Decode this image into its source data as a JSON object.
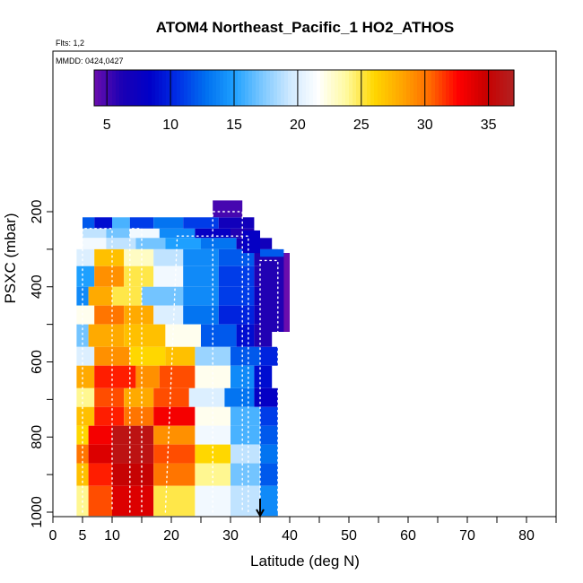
{
  "chart_data": {
    "type": "heatmap",
    "title": "ATOM4 Northeast_Pacific_1 HO2_ATHOS",
    "flights_label": "Flts: 1,2",
    "date_label": "MMDD: 0424,0427",
    "xlabel": "Latitude (deg N)",
    "ylabel": "PSXC (mbar)",
    "xlim": [
      0,
      85
    ],
    "ylim": [
      1010,
      100
    ],
    "y_reversed": true,
    "x_ticks": [
      0,
      5,
      10,
      20,
      30,
      40,
      50,
      60,
      70,
      80
    ],
    "x_minor_ticks": [
      15,
      25,
      35,
      45,
      55,
      65,
      75,
      85
    ],
    "y_ticks": [
      200,
      400,
      600,
      800,
      1000
    ],
    "y_minor_ticks": [
      300,
      500,
      700,
      900
    ],
    "colorbar": {
      "min": 4,
      "max": 37,
      "ticks": [
        5,
        10,
        15,
        20,
        25,
        30,
        35
      ],
      "palette": [
        "#6a0dad",
        "#1a00b4",
        "#0000c8",
        "#0030e6",
        "#0070f0",
        "#1ea0ff",
        "#7cc8ff",
        "#cfe9ff",
        "#ffffff",
        "#fffaa0",
        "#ffd700",
        "#ffa500",
        "#ff6a00",
        "#ff0000",
        "#c80000",
        "#b22222"
      ]
    },
    "marker": {
      "x": 35,
      "label": "arrow"
    },
    "layers": [
      {
        "p": [
          215,
          245
        ],
        "segments": [
          [
            5,
            7,
            12
          ],
          [
            7,
            10,
            9
          ],
          [
            10,
            13,
            16
          ],
          [
            13,
            17,
            11
          ],
          [
            17,
            22,
            13
          ],
          [
            22,
            28,
            11
          ],
          [
            28,
            34,
            7
          ]
        ]
      },
      {
        "p": [
          245,
          270
        ],
        "segments": [
          [
            5,
            9,
            19
          ],
          [
            9,
            13,
            17
          ],
          [
            13,
            18,
            21
          ],
          [
            18,
            24,
            14
          ],
          [
            24,
            30,
            8
          ],
          [
            30,
            34,
            6
          ]
        ]
      },
      {
        "p": [
          270,
          300
        ],
        "segments": [
          [
            5,
            9,
            21
          ],
          [
            9,
            14,
            19
          ],
          [
            14,
            19,
            17
          ],
          [
            19,
            25,
            15
          ],
          [
            25,
            31,
            13
          ],
          [
            31,
            37,
            7
          ]
        ]
      },
      {
        "p": [
          300,
          345
        ],
        "segments": [
          [
            4,
            7,
            20
          ],
          [
            7,
            12,
            27
          ],
          [
            12,
            17,
            23
          ],
          [
            17,
            22,
            19
          ],
          [
            22,
            28,
            14
          ],
          [
            28,
            34,
            12
          ],
          [
            34,
            38,
            6
          ]
        ]
      },
      {
        "p": [
          345,
          400
        ],
        "segments": [
          [
            4,
            7,
            15
          ],
          [
            7,
            12,
            29
          ],
          [
            12,
            17,
            25
          ],
          [
            17,
            22,
            21
          ],
          [
            22,
            28,
            14
          ],
          [
            28,
            34,
            11
          ],
          [
            34,
            38,
            6
          ]
        ]
      },
      {
        "p": [
          400,
          450
        ],
        "segments": [
          [
            4,
            6,
            14
          ],
          [
            6,
            10,
            28
          ],
          [
            10,
            15,
            25
          ],
          [
            15,
            22,
            17
          ],
          [
            22,
            28,
            14
          ],
          [
            28,
            34,
            11
          ],
          [
            34,
            38,
            7
          ]
        ]
      },
      {
        "p": [
          450,
          500
        ],
        "segments": [
          [
            4,
            7,
            22
          ],
          [
            7,
            12,
            30
          ],
          [
            12,
            17,
            28
          ],
          [
            17,
            22,
            20
          ],
          [
            22,
            28,
            13
          ],
          [
            28,
            34,
            10
          ],
          [
            34,
            37,
            7
          ]
        ]
      },
      {
        "p": [
          500,
          560
        ],
        "segments": [
          [
            4,
            6,
            17
          ],
          [
            6,
            12,
            28
          ],
          [
            12,
            19,
            27
          ],
          [
            19,
            25,
            22
          ],
          [
            25,
            31,
            12
          ],
          [
            31,
            34,
            9
          ],
          [
            34,
            37,
            6
          ]
        ]
      },
      {
        "p": [
          560,
          610
        ],
        "segments": [
          [
            4,
            7,
            20
          ],
          [
            7,
            13,
            29
          ],
          [
            13,
            19,
            26
          ],
          [
            19,
            24,
            27
          ],
          [
            24,
            30,
            18
          ],
          [
            30,
            35,
            12
          ],
          [
            35,
            38,
            10
          ]
        ]
      },
      {
        "p": [
          610,
          670
        ],
        "segments": [
          [
            4,
            7,
            28
          ],
          [
            7,
            14,
            32
          ],
          [
            14,
            18,
            29
          ],
          [
            18,
            24,
            31
          ],
          [
            24,
            30,
            22
          ],
          [
            30,
            34,
            14
          ],
          [
            34,
            37,
            9
          ]
        ]
      },
      {
        "p": [
          670,
          720
        ],
        "segments": [
          [
            4,
            7,
            24
          ],
          [
            7,
            12,
            31
          ],
          [
            12,
            17,
            28
          ],
          [
            17,
            23,
            31
          ],
          [
            23,
            29,
            20
          ],
          [
            29,
            34,
            13
          ],
          [
            34,
            38,
            8
          ]
        ]
      },
      {
        "p": [
          720,
          770
        ],
        "segments": [
          [
            4,
            7,
            27
          ],
          [
            7,
            12,
            32
          ],
          [
            12,
            17,
            30
          ],
          [
            17,
            24,
            33
          ],
          [
            24,
            30,
            22
          ],
          [
            30,
            35,
            16
          ],
          [
            35,
            38,
            11
          ]
        ]
      },
      {
        "p": [
          770,
          820
        ],
        "segments": [
          [
            4,
            6,
            26
          ],
          [
            6,
            10,
            33
          ],
          [
            10,
            17,
            36
          ],
          [
            17,
            24,
            29
          ],
          [
            24,
            30,
            21
          ],
          [
            30,
            35,
            16
          ],
          [
            35,
            38,
            12
          ]
        ]
      },
      {
        "p": [
          820,
          870
        ],
        "segments": [
          [
            4,
            6,
            30
          ],
          [
            6,
            10,
            34
          ],
          [
            10,
            17,
            36
          ],
          [
            17,
            24,
            31
          ],
          [
            24,
            30,
            26
          ],
          [
            30,
            35,
            19
          ],
          [
            35,
            38,
            13
          ]
        ]
      },
      {
        "p": [
          870,
          930
        ],
        "segments": [
          [
            4,
            6,
            27
          ],
          [
            6,
            10,
            32
          ],
          [
            10,
            17,
            35
          ],
          [
            17,
            24,
            30
          ],
          [
            24,
            30,
            24
          ],
          [
            30,
            35,
            17
          ],
          [
            35,
            38,
            12
          ]
        ]
      },
      {
        "p": [
          930,
          1010
        ],
        "segments": [
          [
            4,
            6,
            24
          ],
          [
            6,
            10,
            31
          ],
          [
            10,
            17,
            34
          ],
          [
            17,
            24,
            25
          ],
          [
            24,
            30,
            21
          ],
          [
            30,
            35,
            19
          ],
          [
            35,
            38,
            14
          ]
        ]
      },
      {
        "p": [
          170,
          215
        ],
        "segments": [
          [
            27,
            32,
            5
          ]
        ]
      },
      {
        "p": [
          250,
          310
        ],
        "segments": [
          [
            32,
            35,
            8
          ]
        ]
      },
      {
        "p": [
          310,
          520
        ],
        "segments": [
          [
            35,
            40,
            6
          ],
          [
            39,
            40,
            4
          ]
        ]
      },
      {
        "p": [
          300,
          320
        ],
        "segments": [
          [
            35,
            39,
            12
          ]
        ]
      }
    ],
    "flight_tracks": [
      {
        "style": "white",
        "points": [
          [
            5,
            1000
          ],
          [
            5,
            245
          ],
          [
            10,
            245
          ],
          [
            10,
            1000
          ]
        ]
      },
      {
        "style": "white",
        "points": [
          [
            13,
            1000
          ],
          [
            13,
            245
          ],
          [
            15,
            245
          ],
          [
            15,
            1000
          ]
        ]
      },
      {
        "style": "white",
        "points": [
          [
            19,
            1000
          ],
          [
            21,
            265
          ],
          [
            33,
            265
          ],
          [
            33,
            1000
          ]
        ]
      },
      {
        "style": "white",
        "points": [
          [
            27,
            1000
          ],
          [
            27,
            200
          ],
          [
            32,
            200
          ],
          [
            32,
            1000
          ]
        ]
      },
      {
        "style": "white",
        "points": [
          [
            35,
            1000
          ],
          [
            35,
            330
          ],
          [
            38,
            330
          ],
          [
            38,
            1000
          ]
        ]
      }
    ]
  }
}
